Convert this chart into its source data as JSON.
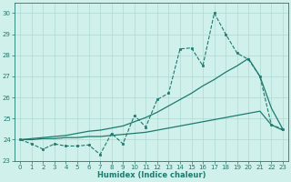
{
  "xlabel": "Humidex (Indice chaleur)",
  "background_color": "#cff0eb",
  "grid_color": "#aed8d3",
  "line_color": "#1e7a6e",
  "x": [
    0,
    1,
    2,
    3,
    4,
    5,
    6,
    7,
    8,
    9,
    10,
    11,
    12,
    13,
    14,
    15,
    16,
    17,
    18,
    19,
    20,
    21,
    22,
    23
  ],
  "y_main": [
    24.0,
    23.8,
    23.55,
    23.8,
    23.7,
    23.7,
    23.75,
    23.3,
    24.3,
    23.8,
    25.15,
    24.6,
    25.9,
    26.2,
    28.3,
    28.35,
    27.5,
    30.0,
    29.0,
    28.1,
    27.8,
    27.0,
    24.7,
    24.5
  ],
  "y_line2": [
    24.0,
    24.0,
    24.05,
    24.05,
    24.1,
    24.1,
    24.15,
    24.15,
    24.2,
    24.25,
    24.3,
    24.35,
    24.45,
    24.55,
    24.65,
    24.75,
    24.85,
    24.95,
    25.05,
    25.15,
    25.25,
    25.35,
    24.7,
    24.45
  ],
  "y_line3": [
    24.0,
    24.05,
    24.1,
    24.15,
    24.2,
    24.3,
    24.4,
    24.45,
    24.55,
    24.65,
    24.85,
    25.05,
    25.3,
    25.6,
    25.9,
    26.2,
    26.55,
    26.85,
    27.2,
    27.5,
    27.85,
    27.0,
    25.5,
    24.5
  ],
  "ylim": [
    23.0,
    30.5
  ],
  "xlim": [
    -0.5,
    23.5
  ],
  "yticks": [
    23,
    24,
    25,
    26,
    27,
    28,
    29,
    30
  ],
  "xticks": [
    0,
    1,
    2,
    3,
    4,
    5,
    6,
    7,
    8,
    9,
    10,
    11,
    12,
    13,
    14,
    15,
    16,
    17,
    18,
    19,
    20,
    21,
    22,
    23
  ],
  "xlabel_fontsize": 6,
  "tick_fontsize": 5
}
